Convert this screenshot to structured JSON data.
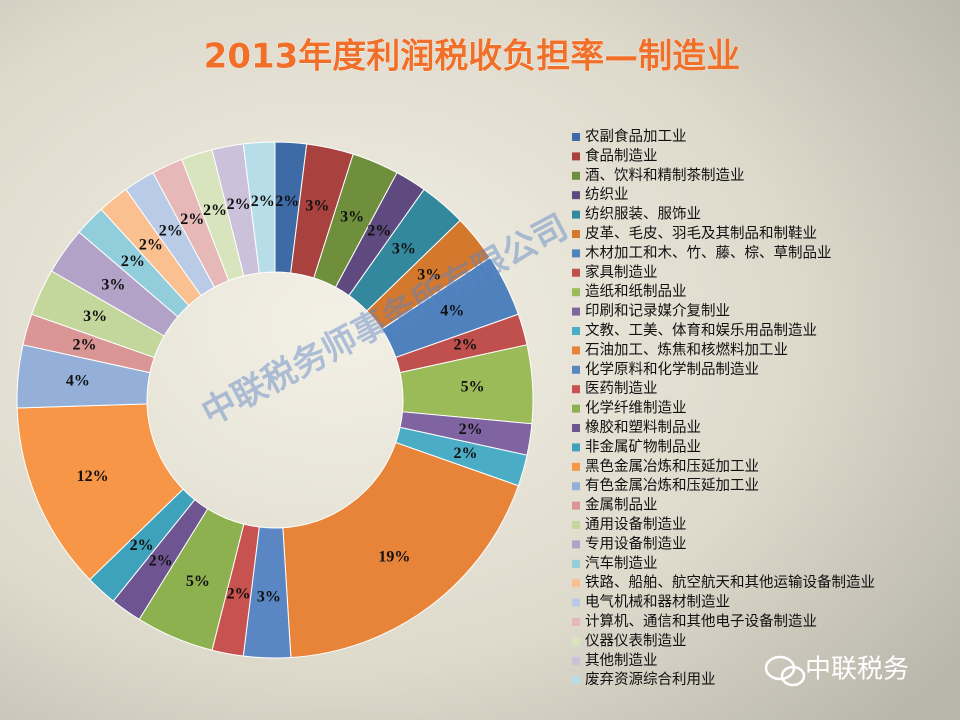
{
  "chart_data": {
    "type": "donut",
    "title": "2013年度利润税收负担率—制造业",
    "categories": [
      "农副食品加工业",
      "食品制造业",
      "酒、饮料和精制茶制造业",
      "纺织业",
      "纺织服装、服饰业",
      "皮革、毛皮、羽毛及其制品和制鞋业",
      "木材加工和木、竹、藤、棕、草制品业",
      "家具制造业",
      "造纸和纸制品业",
      "印刷和记录媒介复制业",
      "文教、工美、体育和娱乐用品制造业",
      "石油加工、炼焦和核燃料加工业",
      "化学原料和化学制品制造业",
      "医药制造业",
      "化学纤维制造业",
      "橡胶和塑料制品业",
      "非金属矿物制品业",
      "黑色金属冶炼和压延加工业",
      "有色金属冶炼和压延加工业",
      "金属制品业",
      "通用设备制造业",
      "专用设备制造业",
      "汽车制造业",
      "铁路、船舶、航空航天和其他运输设备制造业",
      "电气机械和器材制造业",
      "计算机、通信和其他电子设备制造业",
      "仪器仪表制造业",
      "其他制造业",
      "废弃资源综合利用业"
    ],
    "values": [
      2,
      3,
      3,
      2,
      3,
      3,
      4,
      2,
      5,
      2,
      2,
      19,
      3,
      2,
      5,
      2,
      2,
      12,
      4,
      2,
      3,
      3,
      2,
      2,
      2,
      2,
      2,
      2,
      2
    ],
    "value_labels": [
      "2%",
      "3%",
      "3%",
      "2%",
      "3%",
      "3%",
      "4%",
      "2%",
      "5%",
      "2%",
      "2%",
      "19%",
      "3%",
      "2%",
      "5%",
      "2%",
      "2%",
      "12%",
      "4%",
      "2%",
      "3%",
      "3%",
      "2%",
      "2%",
      "2%",
      "2%",
      "2%",
      "2%",
      "2%"
    ],
    "colors": [
      "#3e6aa6",
      "#a9413e",
      "#6f8f3c",
      "#5e4a7e",
      "#34889e",
      "#d4782e",
      "#4f81bd",
      "#c0504d",
      "#9bbb59",
      "#8064a2",
      "#4bacc6",
      "#e8843a",
      "#5b86c4",
      "#c75250",
      "#8db14f",
      "#6e5591",
      "#3ea2bd",
      "#f79646",
      "#95b0d8",
      "#d99694",
      "#c3d69b",
      "#b2a2c7",
      "#92cddc",
      "#fac090",
      "#b9cbe6",
      "#e6b9b8",
      "#d7e4bd",
      "#ccc1da",
      "#b7dee8"
    ],
    "legend": "right",
    "watermark": "中联税务师事务所有限公司",
    "footer": "中联税务"
  }
}
